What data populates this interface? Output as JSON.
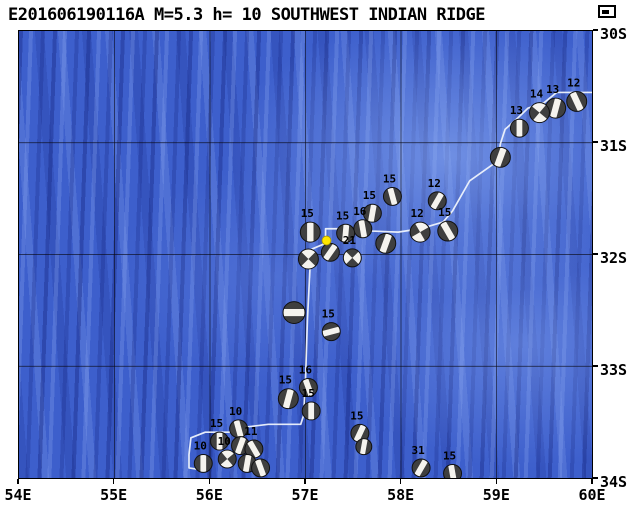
{
  "title": "E201606190116A M=5.3 h= 10 SOUTHWEST INDIAN RIDGE",
  "event": {
    "id": "E201606190116A",
    "magnitude": "5.3",
    "depth_km": "10",
    "region": "SOUTHWEST INDIAN RIDGE"
  },
  "colors": {
    "ocean_base": "#3d5fcc",
    "ocean_dark": "#24409e",
    "ocean_light": "#8aa6ec",
    "grid": "#0b0b16",
    "ridge_line": "#eef3fc",
    "ball_dark": "#3f3f3f",
    "ball_bg": "#f5f3ee",
    "main_event": "#ffe600",
    "frame": "#000000",
    "text": "#000000"
  },
  "axes": {
    "lon_ticks": [
      {
        "value": 54,
        "label": "54E"
      },
      {
        "value": 55,
        "label": "55E"
      },
      {
        "value": 56,
        "label": "56E"
      },
      {
        "value": 57,
        "label": "57E"
      },
      {
        "value": 58,
        "label": "58E"
      },
      {
        "value": 59,
        "label": "59E"
      },
      {
        "value": 60,
        "label": "60E"
      }
    ],
    "lat_ticks": [
      {
        "value": -30,
        "label": "30S"
      },
      {
        "value": -31,
        "label": "31S"
      },
      {
        "value": -32,
        "label": "32S"
      },
      {
        "value": -33,
        "label": "33S"
      },
      {
        "value": -34,
        "label": "34S"
      }
    ]
  },
  "map": {
    "extent": {
      "lon_min": 54,
      "lon_max": 60,
      "lat_min": -34,
      "lat_max": -30
    },
    "grid": {
      "lon_lines": [
        55,
        56,
        57,
        58,
        59
      ],
      "lat_lines": [
        -31,
        -32,
        -33
      ]
    },
    "ridge_line": [
      [
        60.0,
        -30.55
      ],
      [
        59.63,
        -30.55
      ],
      [
        59.5,
        -30.64
      ],
      [
        59.33,
        -30.69
      ],
      [
        59.22,
        -30.78
      ],
      [
        59.09,
        -30.88
      ],
      [
        59.04,
        -31.01
      ],
      [
        59.02,
        -31.16
      ],
      [
        58.72,
        -31.34
      ],
      [
        58.54,
        -31.61
      ],
      [
        58.44,
        -31.71
      ],
      [
        58.2,
        -31.77
      ],
      [
        57.97,
        -31.8
      ],
      [
        57.7,
        -31.79
      ],
      [
        57.42,
        -31.77
      ],
      [
        57.21,
        -31.77
      ],
      [
        57.21,
        -31.9
      ],
      [
        57.07,
        -31.95
      ],
      [
        57.05,
        -32.07
      ],
      [
        57.02,
        -32.59
      ],
      [
        57.0,
        -33.12
      ],
      [
        56.98,
        -33.44
      ],
      [
        56.95,
        -33.52
      ],
      [
        56.61,
        -33.52
      ],
      [
        56.32,
        -33.55
      ],
      [
        56.2,
        -33.59
      ],
      [
        55.95,
        -33.59
      ],
      [
        55.8,
        -33.64
      ],
      [
        55.78,
        -33.79
      ],
      [
        55.78,
        -33.91
      ],
      [
        55.93,
        -33.93
      ]
    ],
    "main_event": {
      "id": "E201606190116A",
      "lon": 57.22,
      "lat": -31.875,
      "color": "#ffe600"
    },
    "beachballs": [
      {
        "lon": 59.84,
        "lat": -30.63,
        "depth": "12",
        "rot": -25,
        "type": "nf",
        "r": 10
      },
      {
        "lon": 59.62,
        "lat": -30.69,
        "depth": "13",
        "rot": 15,
        "type": "nf",
        "r": 10
      },
      {
        "lon": 59.45,
        "lat": -30.73,
        "depth": "14",
        "rot": 40,
        "type": "ss",
        "r": 10
      },
      {
        "lon": 59.24,
        "lat": -30.87,
        "depth": "13",
        "rot": 0,
        "type": "nf",
        "r": 9
      },
      {
        "lon": 59.04,
        "lat": -31.13,
        "depth": "",
        "rot": 20,
        "type": "nf",
        "r": 10
      },
      {
        "lon": 57.91,
        "lat": -31.48,
        "depth": "15",
        "rot": -15,
        "type": "nf",
        "r": 9
      },
      {
        "lon": 57.7,
        "lat": -31.63,
        "depth": "15",
        "rot": 10,
        "type": "nf",
        "r": 9
      },
      {
        "lon": 58.38,
        "lat": -31.52,
        "depth": "12",
        "rot": 30,
        "type": "nf",
        "r": 9
      },
      {
        "lon": 58.49,
        "lat": -31.79,
        "depth": "15",
        "rot": -30,
        "type": "nf",
        "r": 10
      },
      {
        "lon": 58.2,
        "lat": -31.8,
        "depth": "12",
        "rot": 60,
        "type": "ss",
        "r": 10
      },
      {
        "lon": 57.84,
        "lat": -31.9,
        "depth": "",
        "rot": 20,
        "type": "nf",
        "r": 10
      },
      {
        "lon": 57.6,
        "lat": -31.77,
        "depth": "16",
        "rot": -10,
        "type": "nf",
        "r": 9
      },
      {
        "lon": 57.42,
        "lat": -31.81,
        "depth": "15",
        "rot": 5,
        "type": "nf",
        "r": 9
      },
      {
        "lon": 57.26,
        "lat": -31.98,
        "depth": "",
        "rot": 35,
        "type": "nf",
        "r": 9
      },
      {
        "lon": 57.49,
        "lat": -32.03,
        "depth": "21",
        "rot": -45,
        "type": "ss",
        "r": 9
      },
      {
        "lon": 57.05,
        "lat": -31.8,
        "depth": "15",
        "rot": 0,
        "type": "nf",
        "r": 10
      },
      {
        "lon": 57.03,
        "lat": -32.04,
        "depth": "",
        "rot": 45,
        "type": "ss",
        "r": 10
      },
      {
        "lon": 56.88,
        "lat": -32.52,
        "depth": "",
        "rot": 90,
        "type": "nf",
        "r": 11
      },
      {
        "lon": 57.27,
        "lat": -32.69,
        "depth": "15",
        "rot": 75,
        "type": "nf",
        "r": 9
      },
      {
        "lon": 57.03,
        "lat": -33.19,
        "depth": "16",
        "rot": -20,
        "type": "nf",
        "r": 9
      },
      {
        "lon": 56.82,
        "lat": -33.29,
        "depth": "15",
        "rot": 15,
        "type": "nf",
        "r": 10
      },
      {
        "lon": 57.06,
        "lat": -33.4,
        "depth": "15",
        "rot": 0,
        "type": "nf",
        "r": 9
      },
      {
        "lon": 57.57,
        "lat": -33.6,
        "depth": "15",
        "rot": 25,
        "type": "nf",
        "r": 9
      },
      {
        "lon": 57.61,
        "lat": -33.72,
        "depth": "",
        "rot": 10,
        "type": "nf",
        "r": 8
      },
      {
        "lon": 56.3,
        "lat": -33.56,
        "depth": "10",
        "rot": -15,
        "type": "nf",
        "r": 9
      },
      {
        "lon": 56.1,
        "lat": -33.67,
        "depth": "15",
        "rot": 0,
        "type": "nf",
        "r": 9
      },
      {
        "lon": 56.32,
        "lat": -33.71,
        "depth": "",
        "rot": 20,
        "type": "nf",
        "r": 9
      },
      {
        "lon": 56.46,
        "lat": -33.74,
        "depth": "11",
        "rot": -30,
        "type": "nf",
        "r": 9
      },
      {
        "lon": 56.18,
        "lat": -33.83,
        "depth": "10",
        "rot": 50,
        "type": "ss",
        "r": 9
      },
      {
        "lon": 56.39,
        "lat": -33.87,
        "depth": "",
        "rot": 10,
        "type": "nf",
        "r": 9
      },
      {
        "lon": 56.53,
        "lat": -33.91,
        "depth": "",
        "rot": -20,
        "type": "nf",
        "r": 9
      },
      {
        "lon": 55.93,
        "lat": -33.87,
        "depth": "10",
        "rot": 0,
        "type": "nf",
        "r": 9
      },
      {
        "lon": 58.21,
        "lat": -33.91,
        "depth": "31",
        "rot": 30,
        "type": "nf",
        "r": 9
      },
      {
        "lon": 58.54,
        "lat": -33.96,
        "depth": "15",
        "rot": -10,
        "type": "nf",
        "r": 9
      }
    ]
  }
}
